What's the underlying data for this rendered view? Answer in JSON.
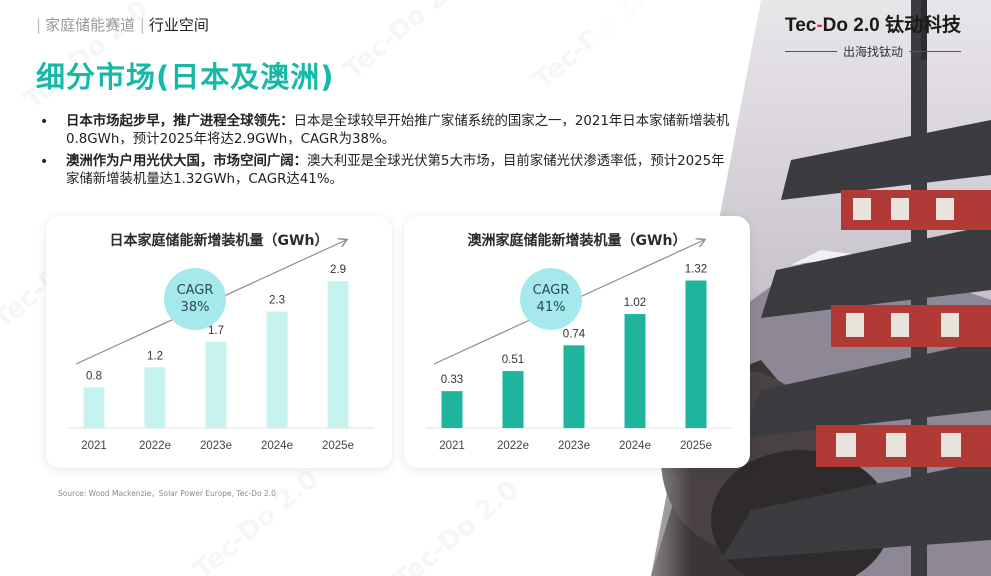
{
  "header": {
    "crumb_section": "家庭储能赛道",
    "crumb_active": "行业空间",
    "title": "细分市场(日本及澳洲)"
  },
  "logo": {
    "brand": "Tec-Do 2.0 钛动科技",
    "brand_a": "Tec",
    "brand_dash": "-",
    "brand_b": "Do 2.0 钛动科技",
    "slogan": "出海找钛动"
  },
  "bullets": [
    {
      "bold": "日本市场起步早，推广进程全球领先：",
      "text": "日本是全球较早开始推广家储系统的国家之一，2021年日本家储新增装机0.8GWh，预计2025年将达2.9GWh，CAGR为38%。"
    },
    {
      "bold": "澳洲作为户用光伏大国，市场空间广阔：",
      "text": "澳大利亚是全球光伏第5大市场，目前家储光伏渗透率低，预计2025年家储新增装机量达1.32GWh，CAGR达41%。"
    }
  ],
  "source": "Source: Wood Mackenzie，Solar Power Europe, Tec-Do 2.0",
  "colors": {
    "title": "#16b9a8",
    "japan_bar": "#c6f3ef",
    "australia_bar": "#1fb59c",
    "cagr_bubble": "#a5e9ec",
    "trend_arrow": "#8c8c8c"
  },
  "chart_data": [
    {
      "type": "bar",
      "title": "日本家庭储能新增装机量（GWh）",
      "categories": [
        "2021",
        "2022e",
        "2023e",
        "2024e",
        "2025e"
      ],
      "values": [
        0.8,
        1.2,
        1.7,
        2.3,
        2.9
      ],
      "value_labels": [
        "0.8",
        "1.2",
        "1.7",
        "2.3",
        "2.9"
      ],
      "ylim": [
        0,
        3.2
      ],
      "annotation": {
        "label": "CAGR",
        "value": "38%"
      },
      "trend_arrow": true,
      "grid": false,
      "bar_color": "#c6f3ef"
    },
    {
      "type": "bar",
      "title": "澳洲家庭储能新增装机量（GWh）",
      "categories": [
        "2021",
        "2022e",
        "2023e",
        "2024e",
        "2025e"
      ],
      "values": [
        0.33,
        0.51,
        0.74,
        1.02,
        1.32
      ],
      "value_labels": [
        "0.33",
        "0.51",
        "0.74",
        "1.02",
        "1.32"
      ],
      "ylim": [
        0,
        1.45
      ],
      "annotation": {
        "label": "CAGR",
        "value": "41%"
      },
      "trend_arrow": true,
      "grid": false,
      "bar_color": "#1fb59c"
    }
  ]
}
